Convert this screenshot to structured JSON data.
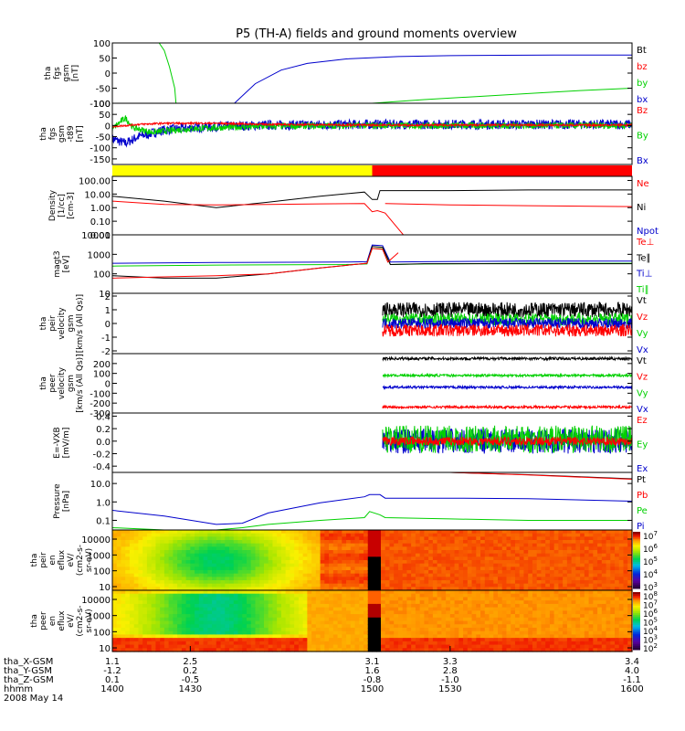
{
  "title": "P5 (TH-A) fields and ground moments overview",
  "colors": {
    "black": "#000000",
    "red": "#ff0000",
    "green": "#00d000",
    "blue": "#0000cc",
    "yellow": "#ffff00",
    "barRed": "#ff0000"
  },
  "chart_data": [
    {
      "type": "line",
      "ylabel": [
        "tha",
        "fgs",
        "gsm",
        "[nT]"
      ],
      "ylim": [
        -100,
        100
      ],
      "yticks": [
        "100",
        "50",
        "0",
        "-50",
        "-100"
      ],
      "legend": [
        {
          "text": "Bt",
          "color": "#000000"
        },
        {
          "text": "bz",
          "color": "#ff0000"
        },
        {
          "text": "by",
          "color": "#00d000"
        },
        {
          "text": "bx",
          "color": "#0000cc"
        }
      ],
      "series": [
        {
          "name": "by",
          "color": "#00d000",
          "x": [
            1418,
            1420,
            1422,
            1424,
            1424.5
          ],
          "y": [
            100,
            75,
            20,
            -50,
            -100
          ]
        },
        {
          "name": "by",
          "color": "#00d000",
          "x": [
            1500,
            1520,
            1540,
            1560,
            1580,
            1600
          ],
          "y": [
            -100,
            -88,
            -78,
            -68,
            -58,
            -50
          ]
        },
        {
          "name": "bx",
          "color": "#0000cc",
          "x": [
            1447,
            1455,
            1465,
            1475,
            1490,
            1510,
            1530,
            1550,
            1570,
            1590,
            1600
          ],
          "y": [
            -100,
            -35,
            10,
            32,
            47,
            55,
            58,
            59,
            60,
            60,
            60
          ]
        }
      ]
    },
    {
      "type": "line",
      "ylabel": [
        "tha",
        "fgs",
        "gsm",
        "-t89",
        "[nT]"
      ],
      "ylim": [
        -175,
        100
      ],
      "yticks": [
        "100",
        "50",
        "0",
        "-50",
        "-100",
        "-150"
      ],
      "legend": [
        {
          "text": "Bz",
          "color": "#ff0000"
        },
        {
          "text": "By",
          "color": "#00d000"
        },
        {
          "text": "Bx",
          "color": "#0000cc"
        }
      ],
      "series": [
        {
          "name": "Bx",
          "color": "#0000cc",
          "noise": 22,
          "x": [
            1400,
            1405,
            1410,
            1415,
            1420,
            1430,
            1440,
            1460,
            1500,
            1600
          ],
          "y": [
            -60,
            -80,
            -50,
            -35,
            -20,
            -10,
            -5,
            2,
            5,
            5
          ]
        },
        {
          "name": "By",
          "color": "#00d000",
          "noise": 14,
          "x": [
            1400,
            1405,
            1408,
            1415,
            1420,
            1430,
            1440,
            1460,
            1500,
            1600
          ],
          "y": [
            -15,
            35,
            -10,
            -30,
            -25,
            -15,
            -10,
            -3,
            0,
            0
          ]
        },
        {
          "name": "Bz",
          "color": "#ff0000",
          "noise": 4,
          "x": [
            1400,
            1410,
            1420,
            1440,
            1460,
            1500,
            1600
          ],
          "y": [
            -5,
            5,
            10,
            10,
            5,
            2,
            2
          ]
        }
      ]
    },
    {
      "type": "bar",
      "segments": [
        {
          "x": [
            1400,
            1500
          ],
          "color": "#ffff00"
        },
        {
          "x": [
            1500,
            1600
          ],
          "color": "#ff0000"
        }
      ]
    },
    {
      "type": "line",
      "ylabel": [
        "Density",
        "[1/cc]",
        "[cm-3]"
      ],
      "scale": "log",
      "ylim": [
        0.01,
        200
      ],
      "yticks": [
        "100.00",
        "10.00",
        "1.00",
        "0.10",
        "0.01"
      ],
      "legend": [
        {
          "text": "Ne",
          "color": "#ff0000"
        },
        {
          "text": "Ni",
          "color": "#000000"
        },
        {
          "text": "Npot",
          "color": "#0000cc"
        }
      ],
      "series": [
        {
          "name": "Ni",
          "color": "#000000",
          "x": [
            1400,
            1420,
            1440,
            1460,
            1480,
            1497,
            1500,
            1502,
            1503,
            1530,
            1560,
            1600
          ],
          "y": [
            7,
            3,
            1.0,
            2.5,
            7,
            14,
            4,
            4,
            18,
            18,
            20,
            20
          ]
        },
        {
          "name": "Ne",
          "color": "#ff0000",
          "x": [
            1400,
            1420,
            1440,
            1460,
            1480,
            1497,
            1500,
            1502,
            1505,
            1512
          ],
          "y": [
            3,
            1.7,
            1.6,
            1.7,
            1.9,
            2.0,
            0.5,
            0.6,
            0.4,
            0.01
          ]
        },
        {
          "name": "Ne",
          "color": "#ff0000",
          "x": [
            1505,
            1530,
            1560,
            1600
          ],
          "y": [
            2.0,
            1.6,
            1.4,
            1.2
          ]
        }
      ]
    },
    {
      "type": "line",
      "ylabel": [
        "magt3",
        "[eV]"
      ],
      "scale": "log",
      "ylim": [
        10,
        10000
      ],
      "yticks": [
        "10000",
        "1000",
        "100",
        "10"
      ],
      "legend": [
        {
          "text": "Te⊥",
          "color": "#ff0000"
        },
        {
          "text": "Te∥",
          "color": "#000000"
        },
        {
          "text": "Ti⊥",
          "color": "#0000cc"
        },
        {
          "text": "Ti∥",
          "color": "#00d000"
        }
      ],
      "series": [
        {
          "name": "Ti⊥",
          "color": "#0000cc",
          "x": [
            1400,
            1440,
            1490,
            1498,
            1500,
            1504,
            1507,
            1520,
            1560,
            1600
          ],
          "y": [
            350,
            380,
            400,
            420,
            3000,
            2800,
            400,
            420,
            450,
            450
          ]
        },
        {
          "name": "Ti∥",
          "color": "#00d000",
          "x": [
            1400,
            1440,
            1490,
            1498,
            1500,
            1504,
            1507,
            1520,
            1560,
            1600
          ],
          "y": [
            250,
            280,
            300,
            320,
            2000,
            1900,
            300,
            320,
            350,
            350
          ]
        },
        {
          "name": "Te∥",
          "color": "#000000",
          "x": [
            1400,
            1420,
            1440,
            1460,
            1480,
            1498,
            1500,
            1504,
            1507,
            1520,
            1560,
            1600
          ],
          "y": [
            80,
            60,
            60,
            100,
            200,
            350,
            2500,
            2300,
            300,
            330,
            330,
            330
          ]
        },
        {
          "name": "Te⊥",
          "color": "#ff0000",
          "x": [
            1400,
            1420,
            1440,
            1460,
            1480,
            1498,
            1500,
            1504,
            1506,
            1510
          ],
          "y": [
            60,
            70,
            80,
            100,
            200,
            350,
            2000,
            1800,
            400,
            1200
          ]
        }
      ]
    },
    {
      "type": "line",
      "ylabel": [
        "tha",
        "peir",
        "velocity",
        "gsm",
        "[km/s (All Qs)]"
      ],
      "ylim": [
        -2.2,
        2.2
      ],
      "yticks": [
        "2",
        "1",
        "0",
        "-1",
        "-2"
      ],
      "legend": [
        {
          "text": "Vt",
          "color": "#000000"
        },
        {
          "text": "Vz",
          "color": "#ff0000"
        },
        {
          "text": "Vy",
          "color": "#00d000"
        },
        {
          "text": "Vx",
          "color": "#0000cc"
        }
      ],
      "series": [
        {
          "name": "Vt",
          "color": "#000000",
          "noise": 0.55,
          "x": [
            1504,
            1600
          ],
          "y": [
            1.0,
            1.0
          ]
        },
        {
          "name": "Vy",
          "color": "#00d000",
          "noise": 0.45,
          "x": [
            1504,
            1600
          ],
          "y": [
            0.3,
            0.3
          ]
        },
        {
          "name": "Vx",
          "color": "#0000cc",
          "noise": 0.4,
          "x": [
            1504,
            1600
          ],
          "y": [
            0,
            0
          ]
        },
        {
          "name": "Vz",
          "color": "#ff0000",
          "noise": 0.45,
          "x": [
            1504,
            1600
          ],
          "y": [
            -0.5,
            -0.5
          ]
        }
      ]
    },
    {
      "type": "line",
      "ylabel": [
        "tha",
        "peer",
        "velocity",
        "gsm",
        "[km/s (All Qs)]"
      ],
      "ylim": [
        -300,
        300
      ],
      "yticks": [
        "200",
        "100",
        "0",
        "-100",
        "-200",
        "-300"
      ],
      "legend": [
        {
          "text": "Vt",
          "color": "#000000"
        },
        {
          "text": "Vz",
          "color": "#ff0000"
        },
        {
          "text": "Vy",
          "color": "#00d000"
        },
        {
          "text": "Vx",
          "color": "#0000cc"
        }
      ],
      "series": [
        {
          "name": "Vt",
          "color": "#000000",
          "noise": 14,
          "x": [
            1504,
            1600
          ],
          "y": [
            250,
            250
          ]
        },
        {
          "name": "Vy",
          "color": "#00d000",
          "noise": 12,
          "x": [
            1504,
            1600
          ],
          "y": [
            80,
            80
          ]
        },
        {
          "name": "Vx",
          "color": "#0000cc",
          "noise": 12,
          "x": [
            1504,
            1600
          ],
          "y": [
            -40,
            -40
          ]
        },
        {
          "name": "Vz",
          "color": "#ff0000",
          "noise": 12,
          "x": [
            1504,
            1600
          ],
          "y": [
            -240,
            -240
          ]
        }
      ]
    },
    {
      "type": "line",
      "ylabel": [
        "E=-VXB",
        "[mV/m]"
      ],
      "ylim": [
        -0.5,
        0.45
      ],
      "yticks": [
        "0.4",
        "0.2",
        "0.0",
        "-0.2",
        "-0.4"
      ],
      "legend": [
        {
          "text": "Ez",
          "color": "#ff0000"
        },
        {
          "text": "Ey",
          "color": "#00d000"
        },
        {
          "text": "Ex",
          "color": "#0000cc"
        }
      ],
      "series": [
        {
          "name": "Ex",
          "color": "#0000cc",
          "noise": 0.2,
          "x": [
            1504,
            1600
          ],
          "y": [
            0,
            0
          ]
        },
        {
          "name": "Ey",
          "color": "#00d000",
          "noise": 0.22,
          "x": [
            1504,
            1600
          ],
          "y": [
            0.03,
            0.03
          ]
        },
        {
          "name": "Ez",
          "color": "#ff0000",
          "noise": 0.07,
          "x": [
            1504,
            1600
          ],
          "y": [
            0,
            0
          ]
        }
      ]
    },
    {
      "type": "line",
      "ylabel": [
        "Pressure",
        "[nPa]"
      ],
      "scale": "log",
      "ylim": [
        0.03,
        40
      ],
      "yticks": [
        "10.0",
        "1.0",
        "0.1"
      ],
      "legend": [
        {
          "text": "Pt",
          "color": "#000000"
        },
        {
          "text": "Pb",
          "color": "#ff0000"
        },
        {
          "text": "Pe",
          "color": "#00d000"
        },
        {
          "text": "Pi",
          "color": "#0000cc"
        }
      ],
      "series": [
        {
          "name": "Pt",
          "color": "#000000",
          "x": [
            1530,
            1560,
            1600
          ],
          "y": [
            40,
            30,
            18
          ]
        },
        {
          "name": "Pb",
          "color": "#ff0000",
          "x": [
            1530,
            1560,
            1600
          ],
          "y": [
            40,
            29,
            17
          ]
        },
        {
          "name": "Pi",
          "color": "#0000cc",
          "x": [
            1400,
            1420,
            1440,
            1450,
            1460,
            1480,
            1497,
            1499,
            1503,
            1505,
            1530,
            1560,
            1600
          ],
          "y": [
            0.35,
            0.17,
            0.06,
            0.07,
            0.25,
            0.9,
            1.9,
            2.5,
            2.5,
            1.6,
            1.6,
            1.5,
            1.1
          ]
        },
        {
          "name": "Pe",
          "color": "#00d000",
          "x": [
            1400,
            1420,
            1440,
            1450,
            1460,
            1480,
            1497,
            1499,
            1503,
            1505,
            1530,
            1560,
            1600
          ],
          "y": [
            0.04,
            0.03,
            0.03,
            0.04,
            0.06,
            0.1,
            0.14,
            0.3,
            0.2,
            0.14,
            0.12,
            0.1,
            0.1
          ]
        }
      ]
    },
    {
      "type": "heatmap",
      "ylabel": [
        "tha",
        "peir",
        "en",
        "eflux",
        "eV/",
        "(cm2-s-",
        "sr-eV)"
      ],
      "yticks": [
        "10000",
        "1000",
        "100",
        "10"
      ],
      "colorbar": [
        {
          "text": "10",
          "sup": "7"
        },
        {
          "text": "10",
          "sup": "6"
        },
        {
          "text": "10",
          "sup": "5"
        },
        {
          "text": "10",
          "sup": "4"
        },
        {
          "text": "10",
          "sup": "3"
        }
      ]
    },
    {
      "type": "heatmap",
      "ylabel": [
        "tha",
        "peer",
        "en",
        "eflux",
        "eV/",
        "(cm2-s-",
        "sr-eV)"
      ],
      "yticks": [
        "10000",
        "1000",
        "100",
        "10"
      ],
      "colorbar": [
        {
          "text": "10",
          "sup": "8"
        },
        {
          "text": "10",
          "sup": "7"
        },
        {
          "text": "10",
          "sup": "6"
        },
        {
          "text": "10",
          "sup": "5"
        },
        {
          "text": "10",
          "sup": "4"
        },
        {
          "text": "10",
          "sup": "3"
        },
        {
          "text": "10",
          "sup": "2"
        }
      ]
    }
  ],
  "x_axis": {
    "range": [
      1400,
      1600
    ],
    "rows": [
      {
        "label": "tha_X-GSM",
        "values": [
          "1.1",
          "2.5",
          "3.1",
          "3.3",
          "3.4"
        ]
      },
      {
        "label": "tha_Y-GSM",
        "values": [
          "-1.2",
          "0.2",
          "1.6",
          "2.8",
          "4.0"
        ]
      },
      {
        "label": "tha_Z-GSM",
        "values": [
          "0.1",
          "-0.5",
          "-0.8",
          "-1.0",
          "-1.1"
        ]
      },
      {
        "label": "hhmm",
        "values": [
          "1400",
          "1430",
          "1500",
          "1530",
          "1600"
        ]
      }
    ],
    "date": "2008 May 14"
  }
}
